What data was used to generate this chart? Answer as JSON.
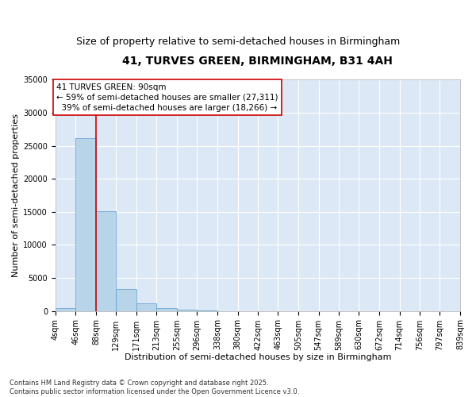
{
  "title": "41, TURVES GREEN, BIRMINGHAM, B31 4AH",
  "subtitle": "Size of property relative to semi-detached houses in Birmingham",
  "xlabel": "Distribution of semi-detached houses by size in Birmingham",
  "ylabel": "Number of semi-detached properties",
  "bin_labels": [
    "4sqm",
    "46sqm",
    "88sqm",
    "129sqm",
    "171sqm",
    "213sqm",
    "255sqm",
    "296sqm",
    "338sqm",
    "380sqm",
    "422sqm",
    "463sqm",
    "505sqm",
    "547sqm",
    "589sqm",
    "630sqm",
    "672sqm",
    "714sqm",
    "756sqm",
    "797sqm",
    "839sqm"
  ],
  "bin_edges": [
    4,
    46,
    88,
    129,
    171,
    213,
    255,
    296,
    338,
    380,
    422,
    463,
    505,
    547,
    589,
    630,
    672,
    714,
    756,
    797,
    839
  ],
  "bar_values": [
    400,
    26100,
    15100,
    3300,
    1200,
    450,
    200,
    50,
    0,
    0,
    0,
    0,
    0,
    0,
    0,
    0,
    0,
    0,
    0,
    0
  ],
  "bar_color": "#b8d4e8",
  "bar_edgecolor": "#5b9bd5",
  "vline_color": "#cc0000",
  "vline_x": 88,
  "annotation_text": "41 TURVES GREEN: 90sqm\n← 59% of semi-detached houses are smaller (27,311)\n  39% of semi-detached houses are larger (18,266) →",
  "annotation_box_color": "#ffffff",
  "annotation_box_edgecolor": "#cc0000",
  "ylim": [
    0,
    35000
  ],
  "yticks": [
    0,
    5000,
    10000,
    15000,
    20000,
    25000,
    30000,
    35000
  ],
  "background_color": "#dce8f5",
  "grid_color": "#ffffff",
  "fig_background": "#ffffff",
  "footer": "Contains HM Land Registry data © Crown copyright and database right 2025.\nContains public sector information licensed under the Open Government Licence v3.0.",
  "title_fontsize": 10,
  "subtitle_fontsize": 9,
  "axis_label_fontsize": 8,
  "tick_fontsize": 7,
  "annotation_fontsize": 7.5,
  "footer_fontsize": 6
}
